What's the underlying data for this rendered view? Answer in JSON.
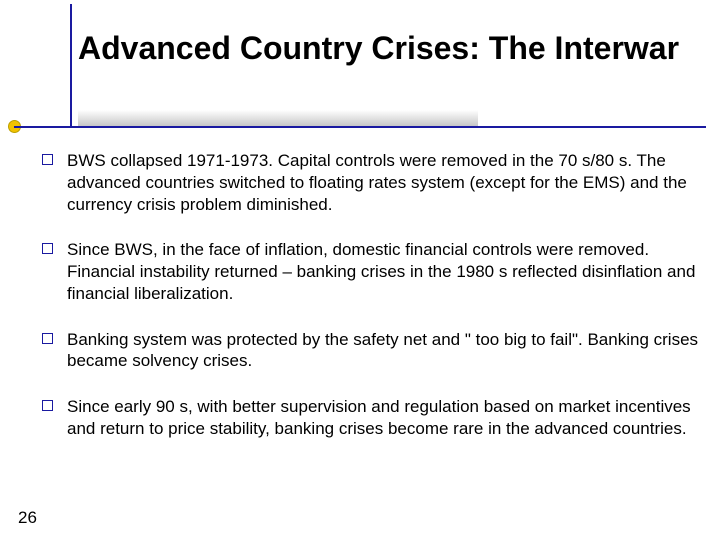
{
  "colors": {
    "rule": "#1a1aa0",
    "dot_fill": "#f2c200",
    "dot_border": "#bca000",
    "text": "#000000",
    "background": "#ffffff"
  },
  "typography": {
    "title_fontsize": 32,
    "body_fontsize": 17,
    "font_family": "Arial"
  },
  "title": "Advanced Country Crises: The Interwar",
  "bullets": [
    "BWS collapsed 1971-1973. Capital controls were removed in the 70 s/80 s. The advanced countries switched to floating rates system (except for the EMS) and the currency crisis problem diminished.",
    "Since BWS, in the face of inflation, domestic financial controls were removed. Financial instability returned – banking crises in the 1980 s reflected disinflation and financial liberalization.",
    "Banking system was protected by the safety net and \" too big to fail\". Banking crises became solvency crises.",
    "Since early 90 s, with better supervision and regulation based on market incentives and return to price stability, banking crises become rare in the advanced countries."
  ],
  "slide_number": "26"
}
